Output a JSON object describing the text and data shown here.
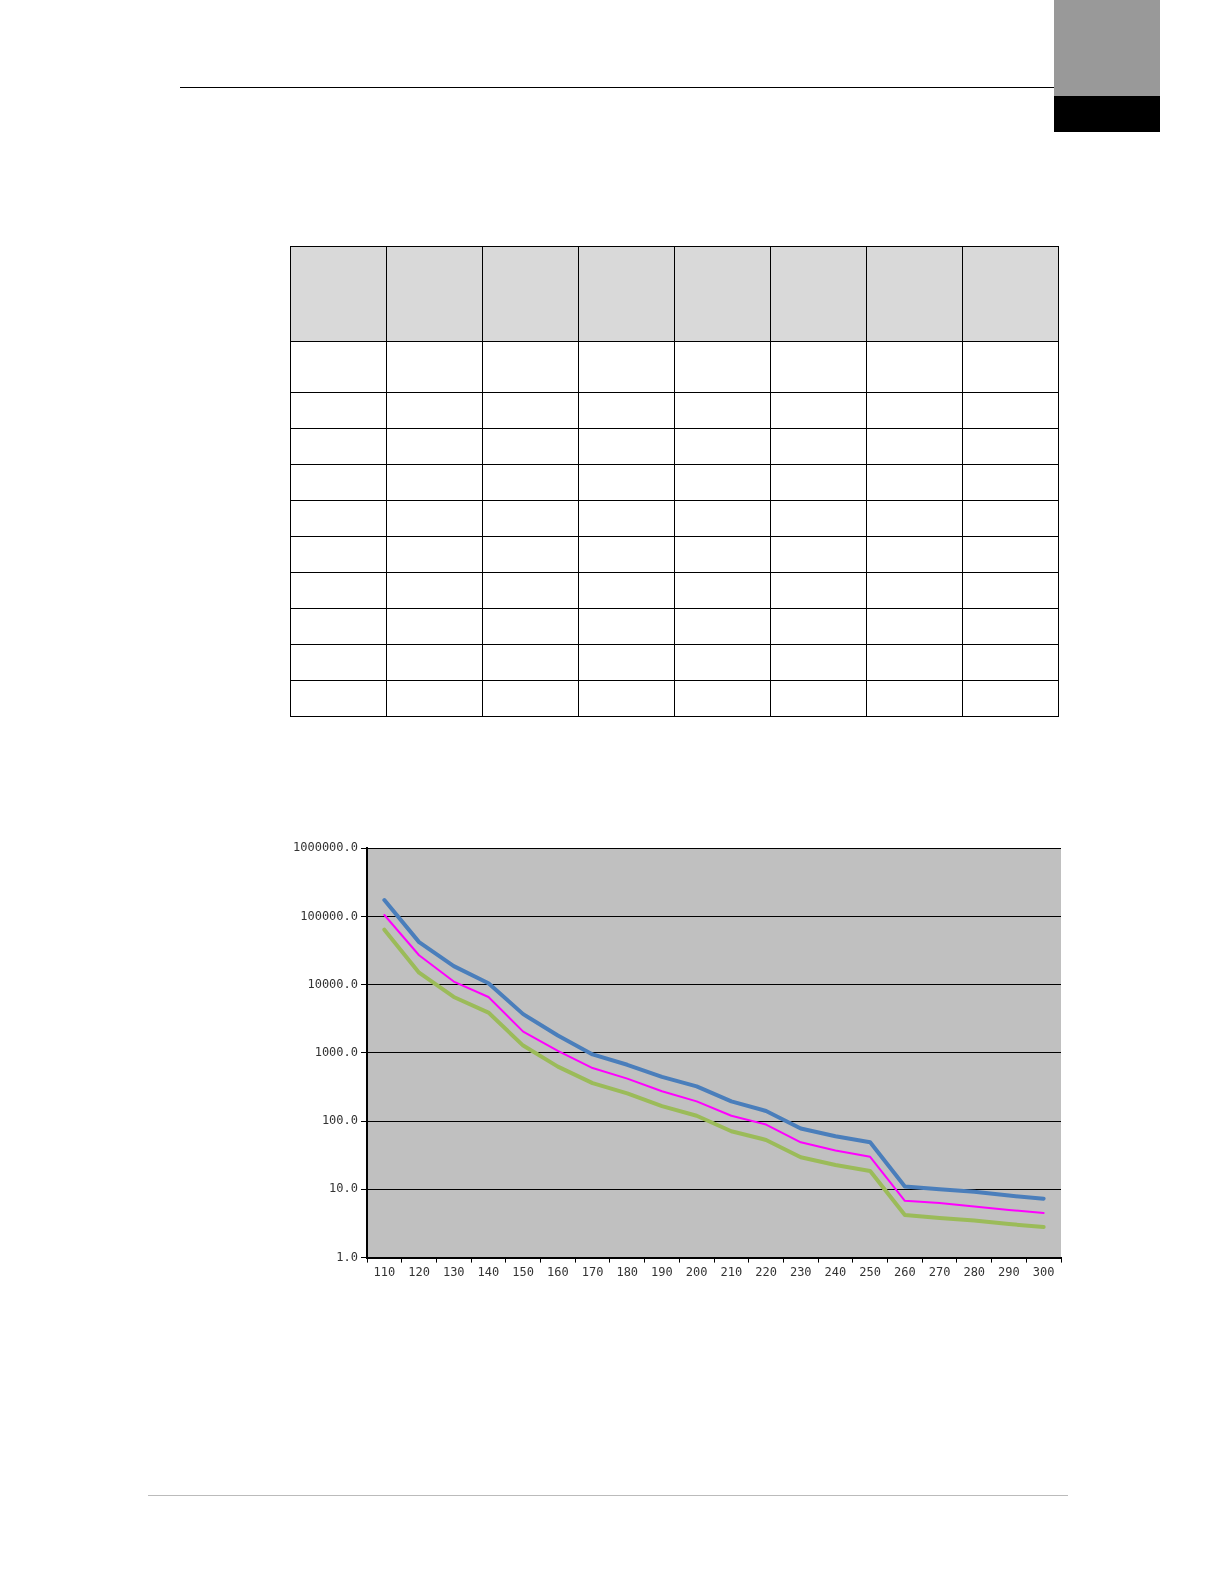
{
  "chart_data": {
    "type": "line",
    "categories": [
      "110",
      "120",
      "130",
      "140",
      "150",
      "160",
      "170",
      "180",
      "190",
      "200",
      "210",
      "220",
      "230",
      "240",
      "250",
      "260",
      "270",
      "280",
      "290",
      "300"
    ],
    "series": [
      {
        "color": "#4a7ebb",
        "values": [
          174000,
          42000,
          18700,
          10500,
          3700,
          1800,
          950,
          670,
          445,
          323,
          195,
          141,
          78,
          60,
          49,
          11,
          10,
          9.2,
          8.1,
          7.3
        ]
      },
      {
        "color": "#ff00ff",
        "values": [
          105000,
          27000,
          11100,
          6600,
          2050,
          1070,
          600,
          420,
          274,
          195,
          120,
          89,
          49,
          37,
          30,
          6.8,
          6.3,
          5.6,
          5.0,
          4.5
        ]
      },
      {
        "color": "#9bbb59",
        "values": [
          64000,
          15000,
          6600,
          3900,
          1280,
          630,
          360,
          255,
          166,
          120,
          71,
          53,
          29.5,
          22.7,
          18.6,
          4.2,
          3.8,
          3.5,
          3.1,
          2.8
        ]
      }
    ],
    "log": "y",
    "ylim": [
      1,
      1000000
    ],
    "yticks": [
      {
        "value": 1,
        "label": "1.0"
      },
      {
        "value": 10,
        "label": "10.0"
      },
      {
        "value": 100,
        "label": "100.0"
      },
      {
        "value": 1000,
        "label": "1000.0"
      },
      {
        "value": 10000,
        "label": "10000.0"
      },
      {
        "value": 100000,
        "label": "100000.0"
      },
      {
        "value": 1000000,
        "label": "1000000.0"
      }
    ],
    "grid": "y",
    "legend": false,
    "marker": "none",
    "line_style": "solid"
  }
}
